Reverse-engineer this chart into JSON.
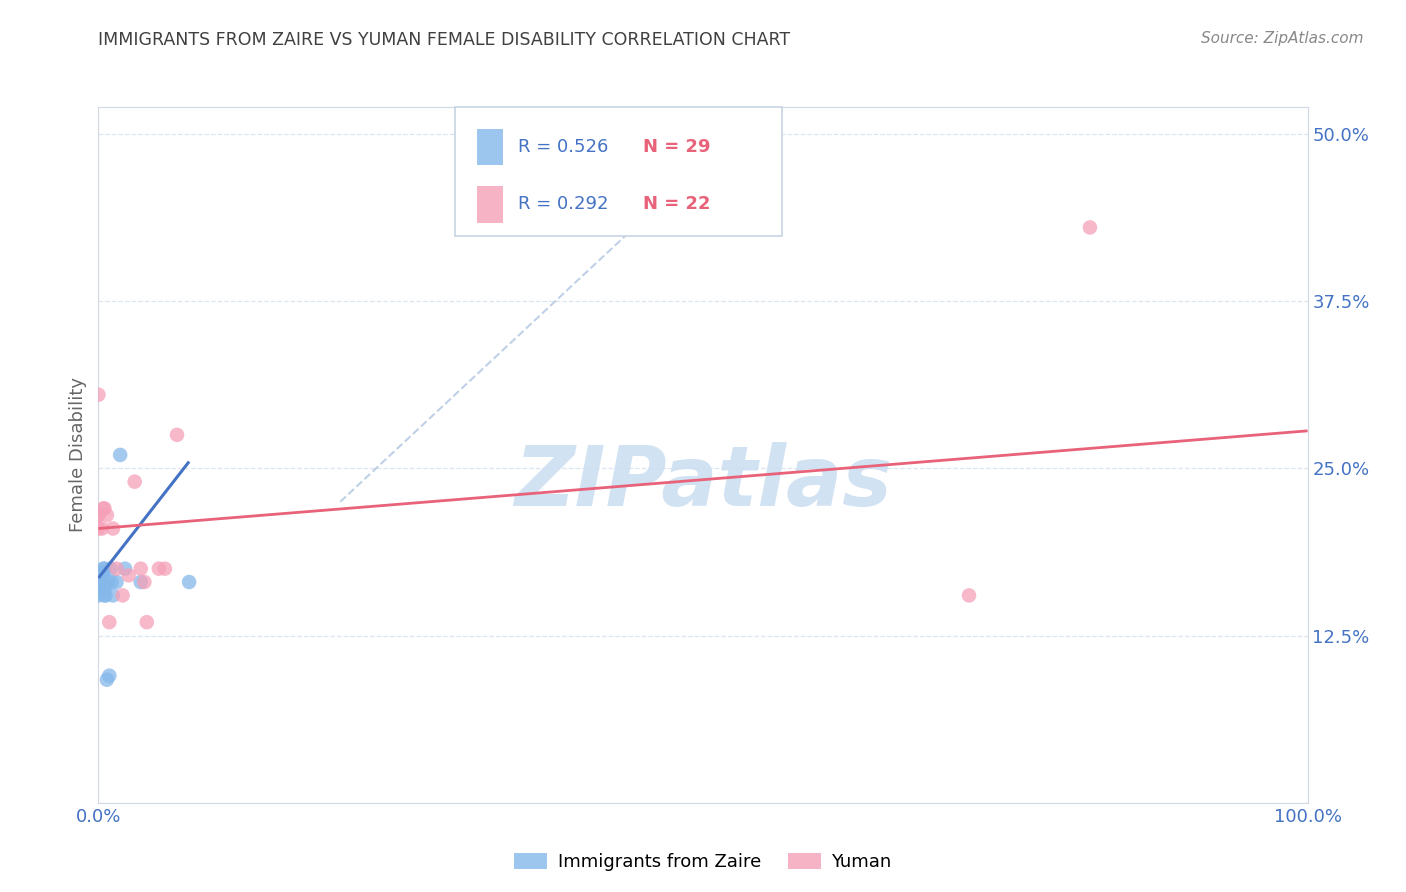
{
  "title": "IMMIGRANTS FROM ZAIRE VS YUMAN FEMALE DISABILITY CORRELATION CHART",
  "source": "Source: ZipAtlas.com",
  "ylabel": "Female Disability",
  "yticks": [
    0.0,
    0.125,
    0.25,
    0.375,
    0.5
  ],
  "ytick_labels": [
    "",
    "12.5%",
    "25.0%",
    "37.5%",
    "50.0%"
  ],
  "xlim": [
    0.0,
    1.0
  ],
  "ylim": [
    0.0,
    0.52
  ],
  "blue_color": "#85b8ea",
  "pink_color": "#f5a0b8",
  "blue_line_color": "#4472c4",
  "pink_line_color": "#e8627a",
  "dashed_line_color": "#b8cce4",
  "grid_color": "#dce6f0",
  "tick_label_color": "#4472c4",
  "title_color": "#404040",
  "source_color": "#888888",
  "ylabel_color": "#666666",
  "blue_points_x": [
    0.0,
    0.0,
    0.0,
    0.0,
    0.0,
    0.0,
    0.0,
    0.0,
    0.0,
    0.0,
    0.003,
    0.003,
    0.004,
    0.004,
    0.005,
    0.005,
    0.006,
    0.006,
    0.007,
    0.008,
    0.009,
    0.01,
    0.011,
    0.012,
    0.015,
    0.018,
    0.022,
    0.035,
    0.075
  ],
  "blue_points_y": [
    0.155,
    0.16,
    0.16,
    0.162,
    0.163,
    0.165,
    0.165,
    0.168,
    0.17,
    0.17,
    0.17,
    0.172,
    0.172,
    0.175,
    0.155,
    0.175,
    0.155,
    0.162,
    0.092,
    0.165,
    0.095,
    0.175,
    0.165,
    0.155,
    0.165,
    0.26,
    0.175,
    0.165,
    0.165
  ],
  "pink_points_x": [
    0.0,
    0.0,
    0.0,
    0.0,
    0.003,
    0.004,
    0.005,
    0.007,
    0.009,
    0.012,
    0.015,
    0.02,
    0.025,
    0.03,
    0.035,
    0.038,
    0.04,
    0.05,
    0.055,
    0.065,
    0.72,
    0.82
  ],
  "pink_points_y": [
    0.305,
    0.215,
    0.215,
    0.205,
    0.205,
    0.22,
    0.22,
    0.215,
    0.135,
    0.205,
    0.175,
    0.155,
    0.17,
    0.24,
    0.175,
    0.165,
    0.135,
    0.175,
    0.175,
    0.275,
    0.155,
    0.43
  ],
  "blue_trend_x": [
    0.0,
    0.075
  ],
  "blue_trend_y": [
    0.168,
    0.255
  ],
  "pink_trend_x": [
    0.0,
    1.0
  ],
  "pink_trend_y": [
    0.205,
    0.278
  ],
  "diag_line_x": [
    0.2,
    0.55
  ],
  "diag_line_y": [
    0.225,
    0.52
  ],
  "watermark_text": "ZIPatlas",
  "watermark_color": "#ccdff2",
  "background_color": "#ffffff",
  "legend_r1": "R = 0.526",
  "legend_n1": "N = 29",
  "legend_r2": "R = 0.292",
  "legend_n2": "N = 22"
}
